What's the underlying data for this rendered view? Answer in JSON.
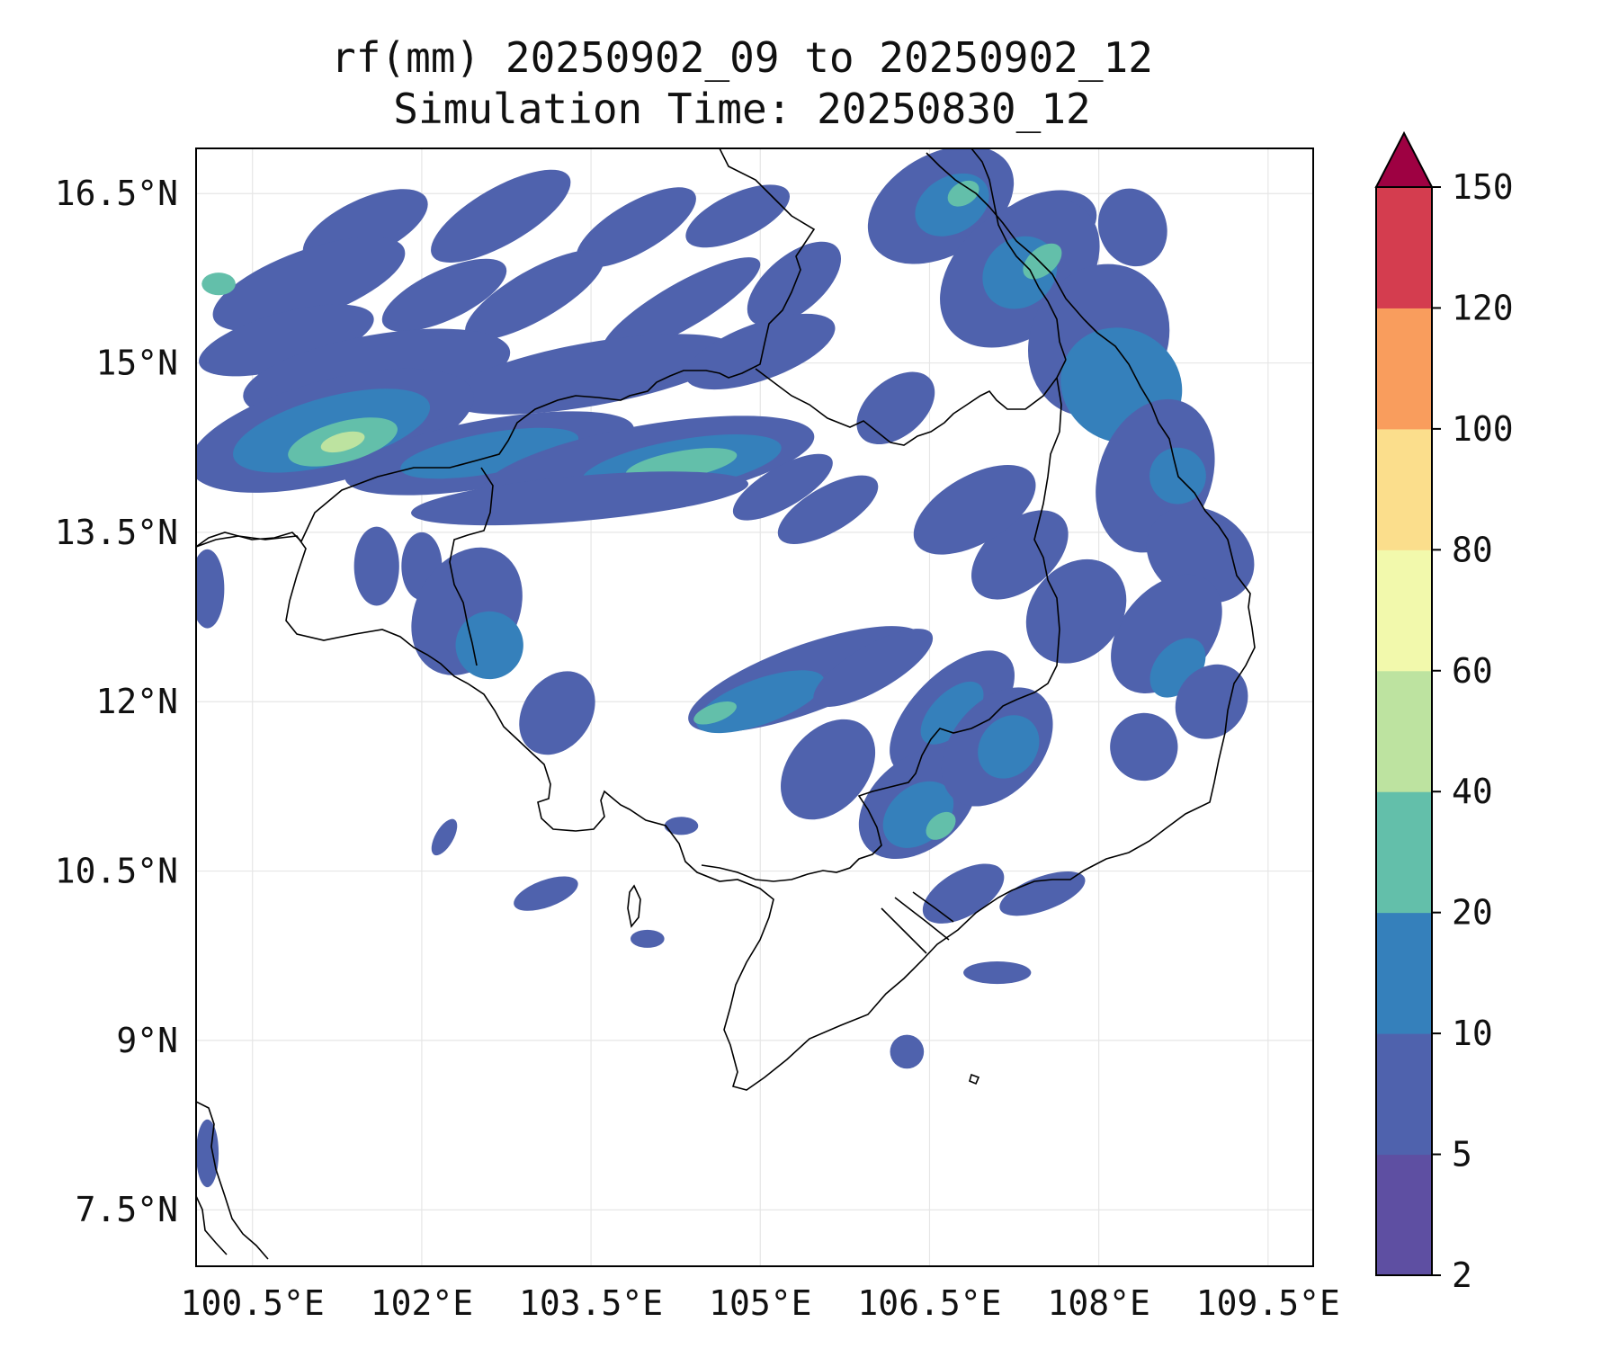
{
  "title": {
    "line1": "rf(mm) 20250902_09 to 20250902_12",
    "line2": "Simulation Time: 20250830_12"
  },
  "map": {
    "lon_range": [
      100.0,
      109.9
    ],
    "lat_range": [
      7.0,
      16.9
    ],
    "lon_ticks": [
      "100.5°E",
      "102°E",
      "103.5°E",
      "105°E",
      "106.5°E",
      "108°E",
      "109.5°E"
    ],
    "lat_ticks": [
      "16.5°N",
      "15°N",
      "13.5°N",
      "12°N",
      "10.5°N",
      "9°N",
      "7.5°N"
    ],
    "gridlines": true
  },
  "colorbar": {
    "levels": [
      "2",
      "5",
      "10",
      "20",
      "40",
      "60",
      "80",
      "100",
      "120",
      "150"
    ],
    "colors": [
      "#5e4fa2",
      "#4f62ad",
      "#3580bb",
      "#63bfaa",
      "#bde3a0",
      "#f2f9ac",
      "#fbde8c",
      "#f99d5d",
      "#d43d4f",
      "#9e0142"
    ],
    "extend": "max"
  }
}
